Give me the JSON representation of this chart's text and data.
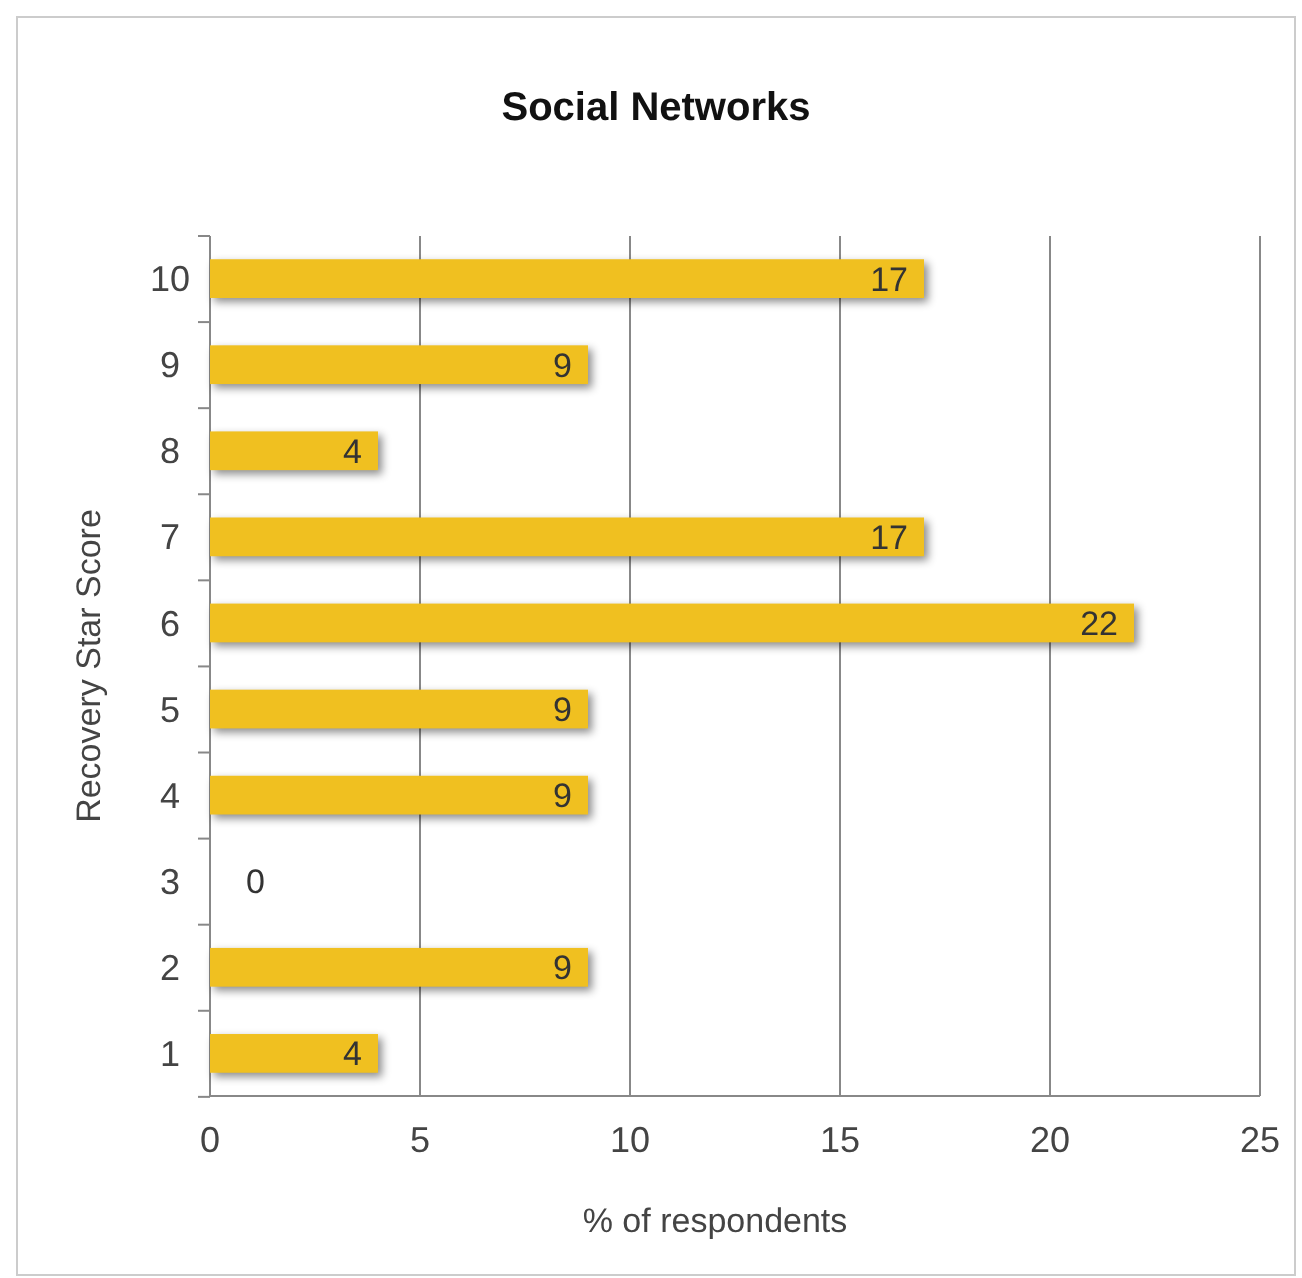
{
  "chart_data": {
    "type": "bar",
    "orientation": "horizontal",
    "title": "Social Networks",
    "xlabel": "% of respondents",
    "ylabel": "Recovery Star Score",
    "categories": [
      "10",
      "9",
      "8",
      "7",
      "6",
      "5",
      "4",
      "3",
      "2",
      "1"
    ],
    "values": [
      17,
      9,
      4,
      17,
      22,
      9,
      9,
      0,
      9,
      4
    ],
    "color": "#f0c020",
    "xlim": [
      0,
      25
    ],
    "xticks": [
      0,
      5,
      10,
      15,
      20,
      25
    ],
    "grid": "x",
    "data_labels": true
  }
}
